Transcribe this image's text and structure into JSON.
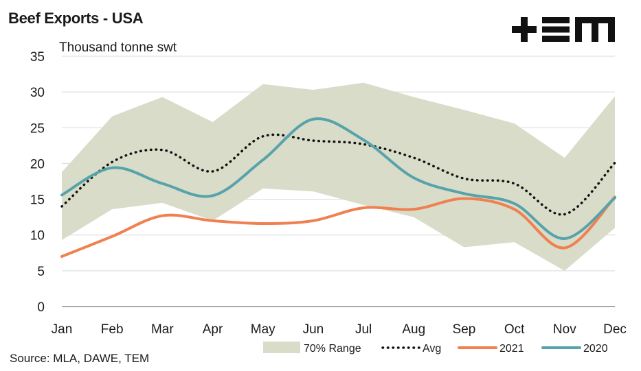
{
  "header": {
    "title": "Beef Exports - USA",
    "logo_text": "+TEM"
  },
  "footer": {
    "source": "Source: MLA, DAWE, TEM"
  },
  "colors": {
    "range": "#d9dcc9",
    "avg": "#111111",
    "y2021": "#f08050",
    "y2020": "#57a3aa",
    "grid": "#d9d9d9",
    "axis": "#8c8c8c"
  },
  "chart_data": {
    "type": "line",
    "ylabel": "Thousand tonne swt",
    "xlabel": "",
    "ylim": [
      0,
      35
    ],
    "yticks": [
      0,
      5,
      10,
      15,
      20,
      25,
      30,
      35
    ],
    "grid": true,
    "legend_position": "bottom-right",
    "categories": [
      "Jan",
      "Feb",
      "Mar",
      "Apr",
      "May",
      "Jun",
      "Jul",
      "Aug",
      "Sep",
      "Oct",
      "Nov",
      "Dec"
    ],
    "range": {
      "name": "70% Range",
      "lower": [
        9.3,
        13.6,
        14.5,
        12.0,
        16.5,
        16.1,
        14.2,
        12.5,
        8.3,
        9.0,
        5.0,
        11.0
      ],
      "upper": [
        18.8,
        26.6,
        29.3,
        25.8,
        31.1,
        30.3,
        31.3,
        29.3,
        27.5,
        25.6,
        20.8,
        29.4
      ]
    },
    "series": [
      {
        "name": "Avg",
        "style": "dotted",
        "values": [
          14.0,
          20.2,
          21.9,
          18.9,
          23.8,
          23.2,
          22.7,
          20.8,
          17.9,
          17.2,
          12.9,
          20.1
        ]
      },
      {
        "name": "2021",
        "style": "solid",
        "values": [
          7.0,
          9.8,
          12.7,
          12.0,
          11.6,
          12.0,
          13.8,
          13.6,
          15.1,
          13.6,
          8.2,
          15.3
        ]
      },
      {
        "name": "2020",
        "style": "solid",
        "values": [
          15.6,
          19.4,
          17.2,
          15.5,
          20.5,
          26.2,
          23.3,
          18.0,
          15.8,
          14.4,
          9.5,
          15.2
        ]
      }
    ]
  }
}
